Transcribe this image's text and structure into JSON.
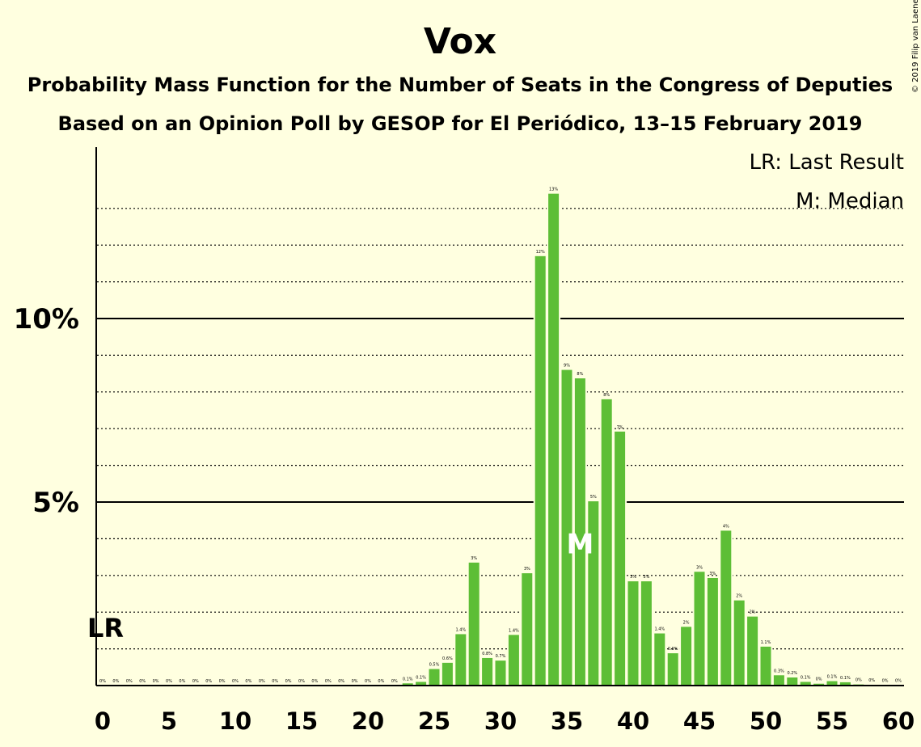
{
  "chart_data": {
    "type": "bar",
    "title": "Vox",
    "subtitle1": "Probability Mass Function for the Number of Seats in the Congress of Deputies",
    "subtitle2": "Based on an Opinion Poll by GESOP for El Periódico, 13–15 February 2019",
    "copyright": "© 2019 Filip van Laenen",
    "legend": [
      "LR: Last Result",
      "M: Median"
    ],
    "legend_position": "top-right",
    "ylabels": [
      "5%",
      "10%"
    ],
    "xticks": [
      "0",
      "5",
      "10",
      "15",
      "20",
      "25",
      "30",
      "35",
      "40",
      "45",
      "50",
      "55",
      "60"
    ],
    "x_range": [
      0,
      60
    ],
    "y_range": [
      0,
      14
    ],
    "grid": "dotted lines every 1%, solid at 5% and 10%",
    "bar_color": "#5dbe36",
    "last_result_seat": 0,
    "last_result_label": "LR",
    "median_seat": 36,
    "median_label": "M",
    "x": [
      0,
      1,
      2,
      3,
      4,
      5,
      6,
      7,
      8,
      9,
      10,
      11,
      12,
      13,
      14,
      15,
      16,
      17,
      18,
      19,
      20,
      21,
      22,
      23,
      24,
      25,
      26,
      27,
      28,
      29,
      30,
      31,
      32,
      33,
      34,
      35,
      36,
      37,
      38,
      39,
      40,
      41,
      42,
      43,
      44,
      45,
      46,
      47,
      48,
      49,
      50,
      51,
      52,
      53,
      54,
      55,
      56,
      57,
      58,
      59,
      60
    ],
    "values": [
      0,
      0,
      0,
      0,
      0,
      0,
      0,
      0,
      0,
      0,
      0,
      0,
      0,
      0,
      0,
      0,
      0,
      0,
      0,
      0,
      0,
      0,
      0,
      0.06,
      0.1,
      0.45,
      0.62,
      1.4,
      3.35,
      0.75,
      0.68,
      1.38,
      3.06,
      11.7,
      13.4,
      8.6,
      8.37,
      5.02,
      7.8,
      6.92,
      2.84,
      2.84,
      1.42,
      0.88,
      1.6,
      3.1,
      2.93,
      4.22,
      2.32,
      1.88,
      1.06,
      0.28,
      0.22,
      0.1,
      0.05,
      0.12,
      0.09,
      0.03,
      0.02,
      0.01,
      0.01
    ],
    "value_labels": [
      "0%",
      "0%",
      "0%",
      "0%",
      "0%",
      "0%",
      "0%",
      "0%",
      "0%",
      "0%",
      "0%",
      "0%",
      "0%",
      "0%",
      "0%",
      "0%",
      "0%",
      "0%",
      "0%",
      "0%",
      "0%",
      "0%",
      "0%",
      "0.1%",
      "0.1%",
      "0.5%",
      "0.6%",
      "1.4%",
      "3%",
      "0.8%",
      "0.7%",
      "1.4%",
      "3%",
      "12%",
      "13%",
      "9%",
      "8%",
      "5%",
      "8%",
      "7%",
      "3%",
      "3%",
      "1.4%",
      "0.9%",
      "2%",
      "3%",
      "3%",
      "4%",
      "2%",
      "2%",
      "1.1%",
      "0.3%",
      "0.2%",
      "0.1%",
      "0%",
      "0.1%",
      "0.1%",
      "0%",
      "0%",
      "0%",
      "0%"
    ]
  }
}
